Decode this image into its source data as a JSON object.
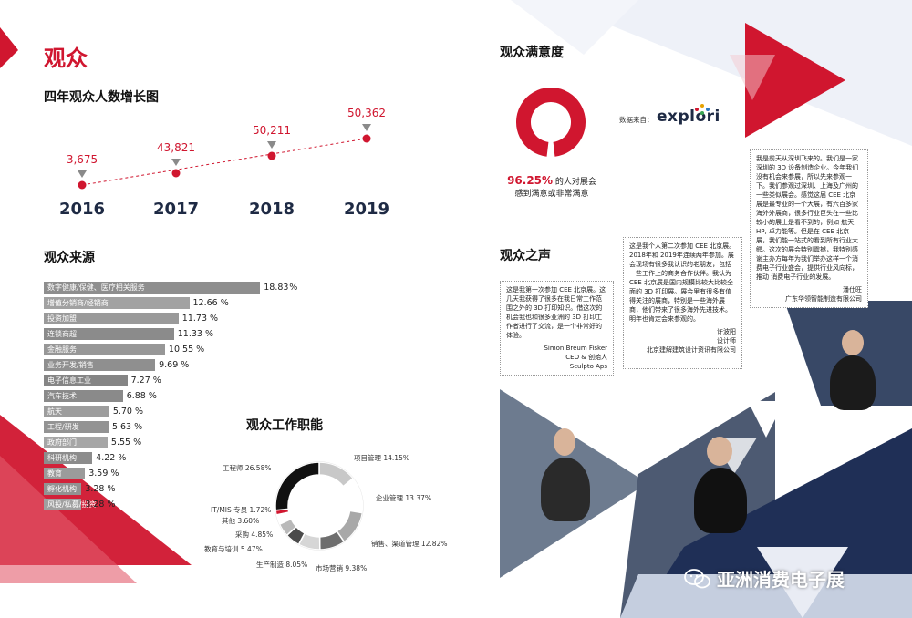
{
  "left": {
    "title": "观众",
    "growth": {
      "title": "四年观众人数增长图",
      "points": [
        {
          "year": "2016",
          "value": "3,675"
        },
        {
          "year": "2017",
          "value": "43,821"
        },
        {
          "year": "2018",
          "value": "50,211"
        },
        {
          "year": "2019",
          "value": "50,362"
        }
      ]
    },
    "sources": {
      "title": "观众来源",
      "max_percent": 20,
      "items": [
        {
          "label": "数字健康/保健、医疗相关服务",
          "value": 18.83,
          "text": "18.83",
          "suffix": "%"
        },
        {
          "label": "增值分销商/经销商",
          "value": 12.66,
          "text": "12.66 %"
        },
        {
          "label": "投资加盟",
          "value": 11.73,
          "text": "11.73 %"
        },
        {
          "label": "连锁商超",
          "value": 11.33,
          "text": "11.33 %"
        },
        {
          "label": "金融服务",
          "value": 10.55,
          "text": "10.55 %"
        },
        {
          "label": "业务开发/销售",
          "value": 9.69,
          "text": "9.69 %"
        },
        {
          "label": "电子信息工业",
          "value": 7.27,
          "text": "7.27 %"
        },
        {
          "label": "汽车技术",
          "value": 6.88,
          "text": "6.88 %"
        },
        {
          "label": "航天",
          "value": 5.7,
          "text": "5.70 %"
        },
        {
          "label": "工程/研发",
          "value": 5.63,
          "text": "5.63 %"
        },
        {
          "label": "政府部门",
          "value": 5.55,
          "text": "5.55 %"
        },
        {
          "label": "科研机构",
          "value": 4.22,
          "text": "4.22 %"
        },
        {
          "label": "教育",
          "value": 3.59,
          "text": "3.59 %"
        },
        {
          "label": "孵化机构",
          "value": 3.28,
          "text": "3.28 %"
        },
        {
          "label": "风投/私募/投资",
          "value": 3.28,
          "text": "3.28 %"
        }
      ]
    },
    "roles": {
      "title": "观众工作职能",
      "items": [
        {
          "label": "项目管理",
          "text": "项目管理 14.15%",
          "value": 14.15,
          "color": "#c8c8c8"
        },
        {
          "label": "企业管理",
          "text": "企业管理 13.37%",
          "value": 13.37,
          "color": "#ffffff"
        },
        {
          "label": "销售、渠道管理",
          "text": "销售、渠道管理 12.82%",
          "value": 12.82,
          "color": "#a8a8a8"
        },
        {
          "label": "市场营销",
          "text": "市场营销 9.38%",
          "value": 9.38,
          "color": "#6e6e6e"
        },
        {
          "label": "生产制造",
          "text": "生产制造 8.05%",
          "value": 8.05,
          "color": "#d6d6d6"
        },
        {
          "label": "教育与培训",
          "text": "教育与培训 5.47%",
          "value": 5.47,
          "color": "#4a4a4a"
        },
        {
          "label": "采购",
          "text": "采购 4.85%",
          "value": 4.85,
          "color": "#b9b9b9"
        },
        {
          "label": "其他",
          "text": "其他 3.60%",
          "value": 3.6,
          "color": "#ffffff"
        },
        {
          "label": "IT/MIS 专员",
          "text": "IT/MIS 专员 1.72%",
          "value": 1.72,
          "color": "#d0162f"
        },
        {
          "label": "工程师",
          "text": "工程师 26.58%",
          "value": 26.58,
          "color": "#111111"
        }
      ]
    }
  },
  "right": {
    "satisfaction": {
      "title": "观众满意度",
      "percent": 96.25,
      "percent_text": "96.25%",
      "line1": "的人对展会",
      "line2": "感到满意或非常满意",
      "source_label": "数据来自：",
      "source_logo": "explori",
      "accent": "#d0162f"
    },
    "voices": {
      "title": "观众之声",
      "quotes": [
        {
          "text": "这是我第一次参加 CEE 北京展。这几天我获得了很多在我日常工作范围之外的 3D 打印知识。借这次的机会我也和很多亚洲的 3D 打印工作者进行了交流，是一个非常好的体验。",
          "name": "Simon Breum Fisker",
          "title": "CEO & 创始人",
          "company": "Sculpto Aps"
        },
        {
          "text": "这是我个人第二次参加 CEE 北京展。2018年和 2019年连续两年参加。展会现场有很多我认识的老朋友，包括一些工作上的商务合作伙伴。我认为 CEE 北京展是国内规模比较大比较全面的 3D 打印展。展会里有很多有值得关注的展商，特别是一些海外展商，他们带来了很多海外先进技术。明年也肯定会来参观的。",
          "name": "许波阳",
          "title": "设计师",
          "company": "北京建解建筑设计资讯有限公司"
        },
        {
          "text": "我是前天从深圳飞来的。我们是一家深圳的 3D 设备制造企业。今年我们没有机会来参展，所以先来参观一下。我们参观过深圳、上海及广州的一些类似展会。感觉这届 CEE 北京展是最专业的一个大展，有六百多家海外外展商，很多行业巨头在一些比较小的展上是看不到的，例如 航天, HP, 卓力能等。但是在 CEE 北京展，我们能一站式的看到所有行业大鳄。这次的展会特别震撼，我特别感谢主办方每年为我们举办这样一个消费电子行业盛会，提供行业风向标，推动 消费电子行业的发展。",
          "name": "潘仕旺",
          "company": "广东华领智能制造有限公司"
        }
      ]
    },
    "watermark": {
      "icon": "wechat-icon",
      "text": "亚洲消费电子展"
    }
  }
}
